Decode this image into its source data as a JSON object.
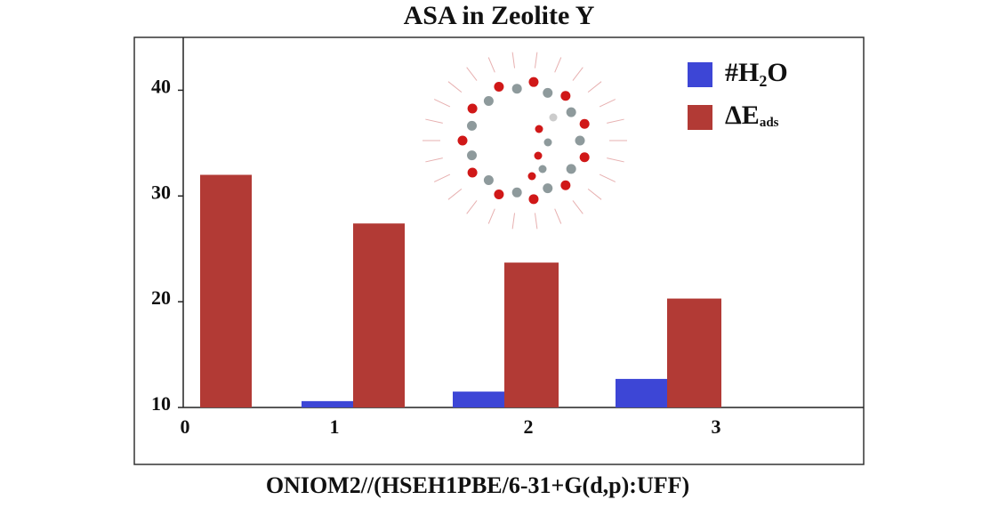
{
  "chart_data": {
    "type": "bar",
    "title": "ASA in Zeolite Y",
    "x_label": "ONIOM2//(HSEH1PBE/6-31+G(d,p):UFF)",
    "categories": [
      "0",
      "1",
      "2",
      "3"
    ],
    "series": [
      {
        "name": "#H₂O",
        "color": "#3d46d6",
        "values": [
          10,
          10.6,
          11.5,
          12.7
        ]
      },
      {
        "name": "ΔE",
        "name_subscript": "ads",
        "color": "#b23a35",
        "values": [
          32,
          27.4,
          23.7,
          20.3
        ]
      }
    ],
    "ylim": [
      10,
      45
    ],
    "yticks": [
      10,
      20,
      30,
      40
    ],
    "legend": "upper right"
  }
}
